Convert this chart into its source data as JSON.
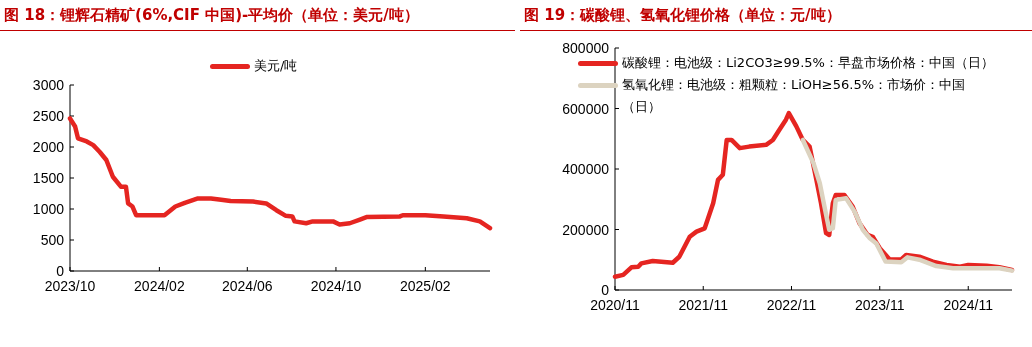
{
  "chart_data": [
    {
      "type": "line",
      "title": "图 18：锂辉石精矿(6%,CIF 中国)-平均价（单位：美元/吨）",
      "legend": "top",
      "series": [
        {
          "name": "美元/吨",
          "color": "#e52521",
          "x": [
            "2023-10-01",
            "2023-10-08",
            "2023-10-12",
            "2023-10-24",
            "2023-11-02",
            "2023-11-11",
            "2023-11-20",
            "2023-11-29",
            "2023-12-10",
            "2023-12-17",
            "2023-12-20",
            "2023-12-26",
            "2023-12-31",
            "2024-02-08",
            "2024-02-23",
            "2024-03-07",
            "2024-03-25",
            "2024-04-12",
            "2024-04-26",
            "2024-05-09",
            "2024-06-09",
            "2024-06-27",
            "2024-07-11",
            "2024-07-24",
            "2024-08-02",
            "2024-08-05",
            "2024-08-21",
            "2024-08-30",
            "2024-09-27",
            "2024-10-06",
            "2024-10-20",
            "2024-11-03",
            "2024-11-12",
            "2024-12-28",
            "2025-01-01",
            "2025-02-01",
            "2025-02-26",
            "2025-03-30",
            "2025-04-17",
            "2025-05-01"
          ],
          "values": [
            2460,
            2330,
            2140,
            2090,
            2030,
            1920,
            1790,
            1520,
            1360,
            1360,
            1090,
            1040,
            900,
            900,
            1040,
            1100,
            1170,
            1170,
            1150,
            1130,
            1120,
            1090,
            980,
            890,
            880,
            800,
            770,
            800,
            800,
            750,
            770,
            830,
            870,
            880,
            900,
            900,
            880,
            850,
            800,
            690
          ]
        }
      ],
      "xlim": [
        "2023-10-01",
        "2025-05-01"
      ],
      "xticks": [
        {
          "value": "2023-10-01",
          "label": "2023/10"
        },
        {
          "value": "2024-02-01",
          "label": "2024/02"
        },
        {
          "value": "2024-06-01",
          "label": "2024/06"
        },
        {
          "value": "2024-10-01",
          "label": "2024/10"
        },
        {
          "value": "2025-02-01",
          "label": "2025/02"
        }
      ],
      "ylim": [
        0,
        3000
      ],
      "yticks": [
        0,
        500,
        1000,
        1500,
        2000,
        2500,
        3000
      ]
    },
    {
      "type": "line",
      "title": "图 19：碳酸锂、氢氧化锂价格（单位：元/吨）",
      "legend": "top left",
      "series": [
        {
          "name": "碳酸锂：电池级：Li2CO3≥99.5%：早盘市场价格：中国（日）",
          "color": "#e52521",
          "x": [
            "2020-11-01",
            "2020-12-05",
            "2021-01-08",
            "2021-02-05",
            "2021-02-18",
            "2021-04-06",
            "2021-06-28",
            "2021-07-25",
            "2021-09-06",
            "2021-10-04",
            "2021-11-07",
            "2021-12-12",
            "2022-01-01",
            "2022-01-21",
            "2022-02-06",
            "2022-02-26",
            "2022-04-01",
            "2022-05-10",
            "2022-07-19",
            "2022-08-16",
            "2022-09-12",
            "2022-10-09",
            "2022-10-21",
            "2022-11-21",
            "2022-12-18",
            "2023-01-15",
            "2023-02-12",
            "2023-03-03",
            "2023-03-24",
            "2023-04-06",
            "2023-04-21",
            "2023-05-03",
            "2023-06-08",
            "2023-07-12",
            "2023-08-09",
            "2023-09-12",
            "2023-10-03",
            "2023-11-01",
            "2023-12-12",
            "2024-01-29",
            "2024-02-18",
            "2024-04-13",
            "2024-06-08",
            "2024-08-03",
            "2024-09-28",
            "2024-11-01",
            "2025-01-16",
            "2025-03-10",
            "2025-05-01"
          ],
          "values": [
            44000,
            50000,
            75000,
            77000,
            88000,
            96000,
            90000,
            110000,
            176000,
            193000,
            204000,
            287000,
            364000,
            381000,
            496000,
            496000,
            469000,
            474000,
            480000,
            496000,
            530000,
            563000,
            585000,
            541000,
            496000,
            474000,
            364000,
            287000,
            188000,
            182000,
            287000,
            314000,
            314000,
            276000,
            221000,
            182000,
            176000,
            138000,
            101000,
            101000,
            116000,
            110000,
            94000,
            83000,
            77000,
            83000,
            80000,
            75000,
            66000
          ]
        },
        {
          "name": "氢氧化锂：电池级：粗颗粒：LiOH≥56.5%：市场价：中国（日）",
          "color": "#dcd3c0",
          "x": [
            "2022-12-18",
            "2023-01-31",
            "2023-02-26",
            "2023-03-20",
            "2023-04-06",
            "2023-04-21",
            "2023-05-03",
            "2023-06-15",
            "2023-07-20",
            "2023-08-23",
            "2023-09-21",
            "2023-10-18",
            "2023-11-25",
            "2024-01-29",
            "2024-02-24",
            "2024-04-18",
            "2024-06-22",
            "2024-08-30",
            "2024-12-20",
            "2025-03-10",
            "2025-05-01"
          ],
          "values": [
            496000,
            419000,
            353000,
            265000,
            199000,
            204000,
            298000,
            303000,
            259000,
            199000,
            171000,
            154000,
            94000,
            92000,
            108000,
            99000,
            79000,
            72000,
            72000,
            72000,
            64000
          ]
        }
      ],
      "xlim": [
        "2020-11-01",
        "2025-05-01"
      ],
      "xticks": [
        {
          "value": "2020-11-01",
          "label": "2020/11"
        },
        {
          "value": "2021-11-01",
          "label": "2021/11"
        },
        {
          "value": "2022-11-01",
          "label": "2022/11"
        },
        {
          "value": "2023-11-01",
          "label": "2023/11"
        },
        {
          "value": "2024-11-01",
          "label": "2024/11"
        }
      ],
      "ylim": [
        0,
        800000
      ],
      "yticks": [
        0,
        200000,
        400000,
        600000,
        800000
      ]
    }
  ]
}
